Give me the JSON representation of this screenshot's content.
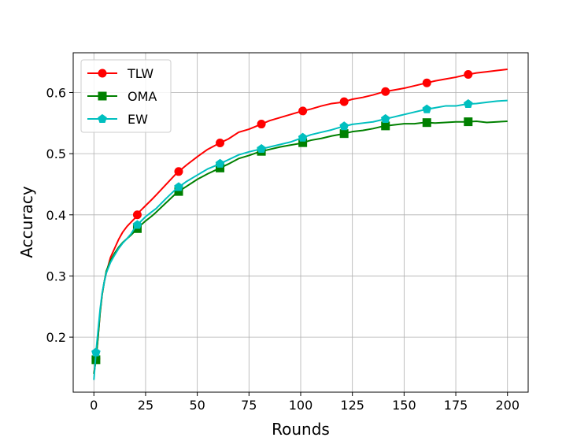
{
  "chart_data": {
    "type": "line",
    "xlabel": "Rounds",
    "ylabel": "Accuracy",
    "xlim": [
      -10,
      210
    ],
    "ylim": [
      0.11,
      0.665
    ],
    "xticks": [
      0,
      25,
      50,
      75,
      100,
      125,
      150,
      175,
      200
    ],
    "yticks": [
      0.2,
      0.3,
      0.4,
      0.5,
      0.6
    ],
    "xtick_labels": [
      "0",
      "25",
      "50",
      "75",
      "100",
      "125",
      "150",
      "175",
      "200"
    ],
    "ytick_labels": [
      "0.2",
      "0.3",
      "0.4",
      "0.5",
      "0.6"
    ],
    "grid": true,
    "legend_position": "top-left",
    "x": [
      0,
      1,
      2,
      3,
      4,
      5,
      6,
      8,
      10,
      12,
      14,
      16,
      18,
      20,
      22,
      25,
      28,
      30,
      35,
      40,
      45,
      50,
      55,
      60,
      65,
      70,
      75,
      80,
      85,
      90,
      95,
      100,
      105,
      110,
      115,
      120,
      125,
      130,
      135,
      140,
      145,
      150,
      155,
      160,
      165,
      170,
      175,
      180,
      185,
      190,
      195,
      200
    ],
    "series": [
      {
        "name": "TLW",
        "color": "#ff0000",
        "marker": "circle",
        "marker_x": [
          1,
          21,
          41,
          61,
          81,
          101,
          121,
          141,
          161,
          181
        ],
        "values": [
          0.14,
          0.165,
          0.2,
          0.24,
          0.27,
          0.29,
          0.305,
          0.33,
          0.345,
          0.36,
          0.372,
          0.381,
          0.388,
          0.395,
          0.405,
          0.415,
          0.425,
          0.432,
          0.45,
          0.468,
          0.482,
          0.495,
          0.507,
          0.516,
          0.524,
          0.535,
          0.54,
          0.547,
          0.554,
          0.559,
          0.564,
          0.569,
          0.573,
          0.578,
          0.582,
          0.584,
          0.589,
          0.592,
          0.596,
          0.601,
          0.604,
          0.607,
          0.611,
          0.615,
          0.619,
          0.622,
          0.625,
          0.629,
          0.632,
          0.634,
          0.636,
          0.638
        ]
      },
      {
        "name": "OMA",
        "color": "#008000",
        "marker": "square",
        "marker_x": [
          1,
          21,
          41,
          61,
          81,
          101,
          121,
          141,
          161,
          181
        ],
        "values": [
          0.14,
          0.163,
          0.2,
          0.24,
          0.27,
          0.29,
          0.308,
          0.325,
          0.337,
          0.347,
          0.355,
          0.361,
          0.367,
          0.374,
          0.381,
          0.39,
          0.398,
          0.404,
          0.42,
          0.436,
          0.447,
          0.458,
          0.467,
          0.475,
          0.483,
          0.492,
          0.497,
          0.503,
          0.507,
          0.511,
          0.514,
          0.517,
          0.522,
          0.525,
          0.529,
          0.532,
          0.536,
          0.538,
          0.541,
          0.545,
          0.547,
          0.549,
          0.549,
          0.551,
          0.55,
          0.551,
          0.552,
          0.552,
          0.553,
          0.551,
          0.552,
          0.553
        ]
      },
      {
        "name": "EW",
        "color": "#00bfbf",
        "marker": "pentagon",
        "marker_x": [
          1,
          21,
          41,
          61,
          81,
          101,
          121,
          141,
          161,
          181
        ],
        "values": [
          0.13,
          0.175,
          0.21,
          0.245,
          0.272,
          0.29,
          0.305,
          0.322,
          0.334,
          0.345,
          0.354,
          0.361,
          0.369,
          0.38,
          0.387,
          0.397,
          0.405,
          0.41,
          0.427,
          0.443,
          0.455,
          0.465,
          0.475,
          0.482,
          0.49,
          0.498,
          0.503,
          0.507,
          0.511,
          0.515,
          0.519,
          0.525,
          0.531,
          0.535,
          0.539,
          0.544,
          0.548,
          0.55,
          0.552,
          0.556,
          0.56,
          0.564,
          0.568,
          0.572,
          0.575,
          0.578,
          0.578,
          0.581,
          0.582,
          0.584,
          0.586,
          0.587
        ]
      }
    ]
  }
}
